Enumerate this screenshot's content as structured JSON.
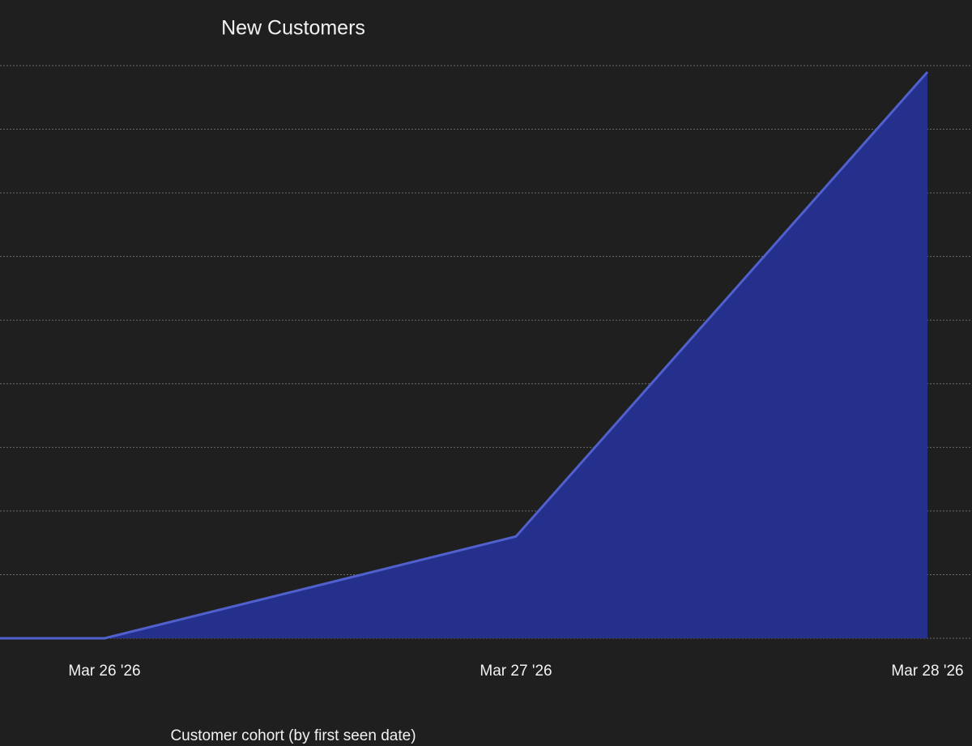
{
  "chart_data": {
    "type": "area",
    "title": "New Customers",
    "x_label": "Customer cohort (by first seen date)",
    "categories": [
      null,
      "Mar 26 '26",
      "Mar 27 '26",
      "Mar 28 '26"
    ],
    "values": [
      0,
      0,
      1.6,
      8.9
    ],
    "color": "#24308c",
    "line_color": "#5060cc",
    "ylim": [
      0,
      9
    ],
    "yticks": [
      0,
      1,
      2,
      3,
      4,
      5,
      6,
      7,
      8,
      9
    ],
    "grid": true
  }
}
